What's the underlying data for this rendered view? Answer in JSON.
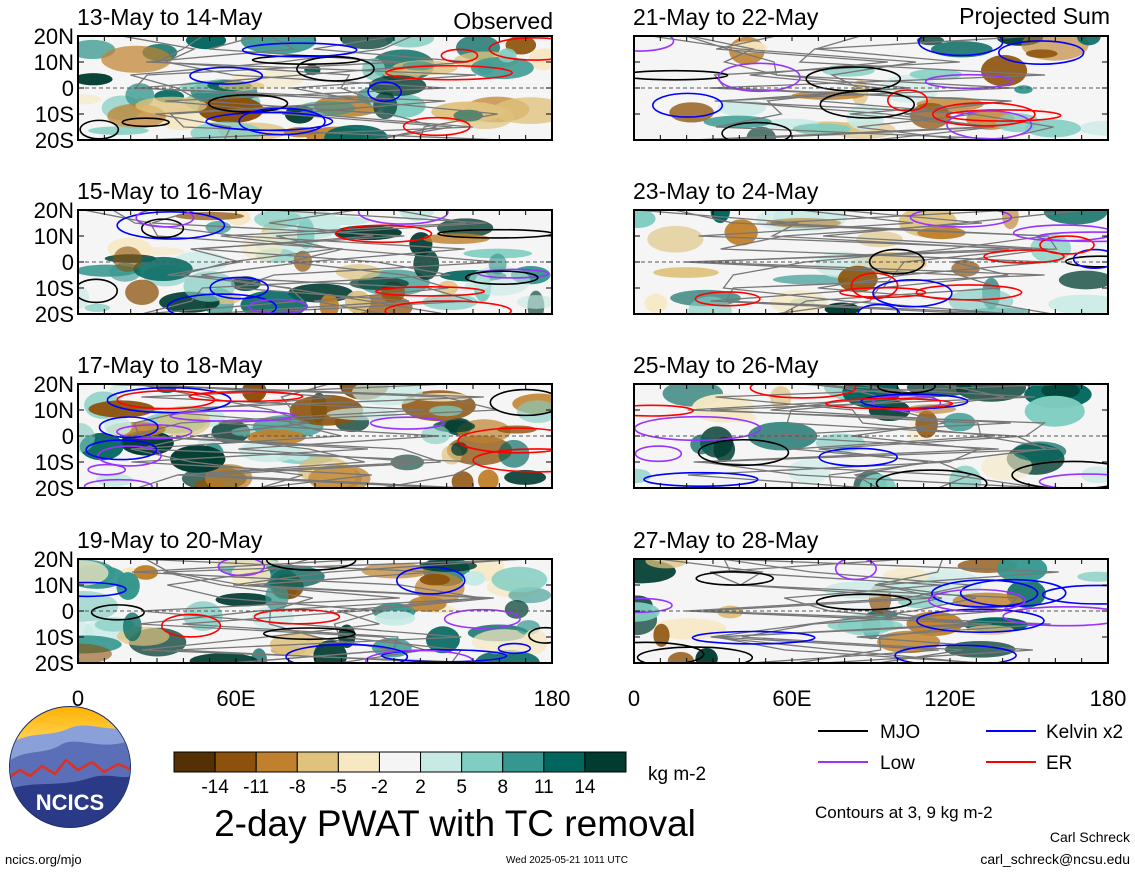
{
  "header": {
    "left_label": "Observed",
    "right_label": "Projected Sum"
  },
  "panels": [
    {
      "period": "13-May to 14-May",
      "column": "left"
    },
    {
      "period": "15-May to 16-May",
      "column": "left"
    },
    {
      "period": "17-May to 18-May",
      "column": "left"
    },
    {
      "period": "19-May to 20-May",
      "column": "left"
    },
    {
      "period": "21-May to 22-May",
      "column": "right"
    },
    {
      "period": "23-May to 24-May",
      "column": "right"
    },
    {
      "period": "25-May to 26-May",
      "column": "right"
    },
    {
      "period": "27-May to 28-May",
      "column": "right"
    }
  ],
  "axes": {
    "lat_labels": [
      "20N",
      "10N",
      "0",
      "10S",
      "20S"
    ],
    "lon_labels": [
      "0",
      "60E",
      "120E",
      "180"
    ]
  },
  "colorbar": {
    "labels": [
      "-14",
      "-11",
      "-8",
      "-5",
      "-2",
      "2",
      "5",
      "8",
      "11",
      "14"
    ],
    "colors": [
      "#543005",
      "#8c510a",
      "#bf812d",
      "#dfc27d",
      "#f6e8c3",
      "#f5f5f5",
      "#c7eae5",
      "#80cdc1",
      "#35978f",
      "#01665e",
      "#003c30"
    ],
    "unit": "kg m-2"
  },
  "title": "2-day PWAT with TC removal",
  "legend": {
    "items": [
      {
        "label": "MJO",
        "color": "#000000"
      },
      {
        "label": "Kelvin x2",
        "color": "#0000ff"
      },
      {
        "label": "Low",
        "color": "#9933ff"
      },
      {
        "label": "ER",
        "color": "#ff0000"
      }
    ],
    "note": "Contours at 3, 9 kg m-2"
  },
  "logo": {
    "text": "NCICS"
  },
  "footer": {
    "url": "ncics.org/mjo",
    "timestamp": "Wed 2025-05-21 1011 UTC",
    "author": "Carl Schreck",
    "email": "carl_schreck@ncsu.edu"
  }
}
